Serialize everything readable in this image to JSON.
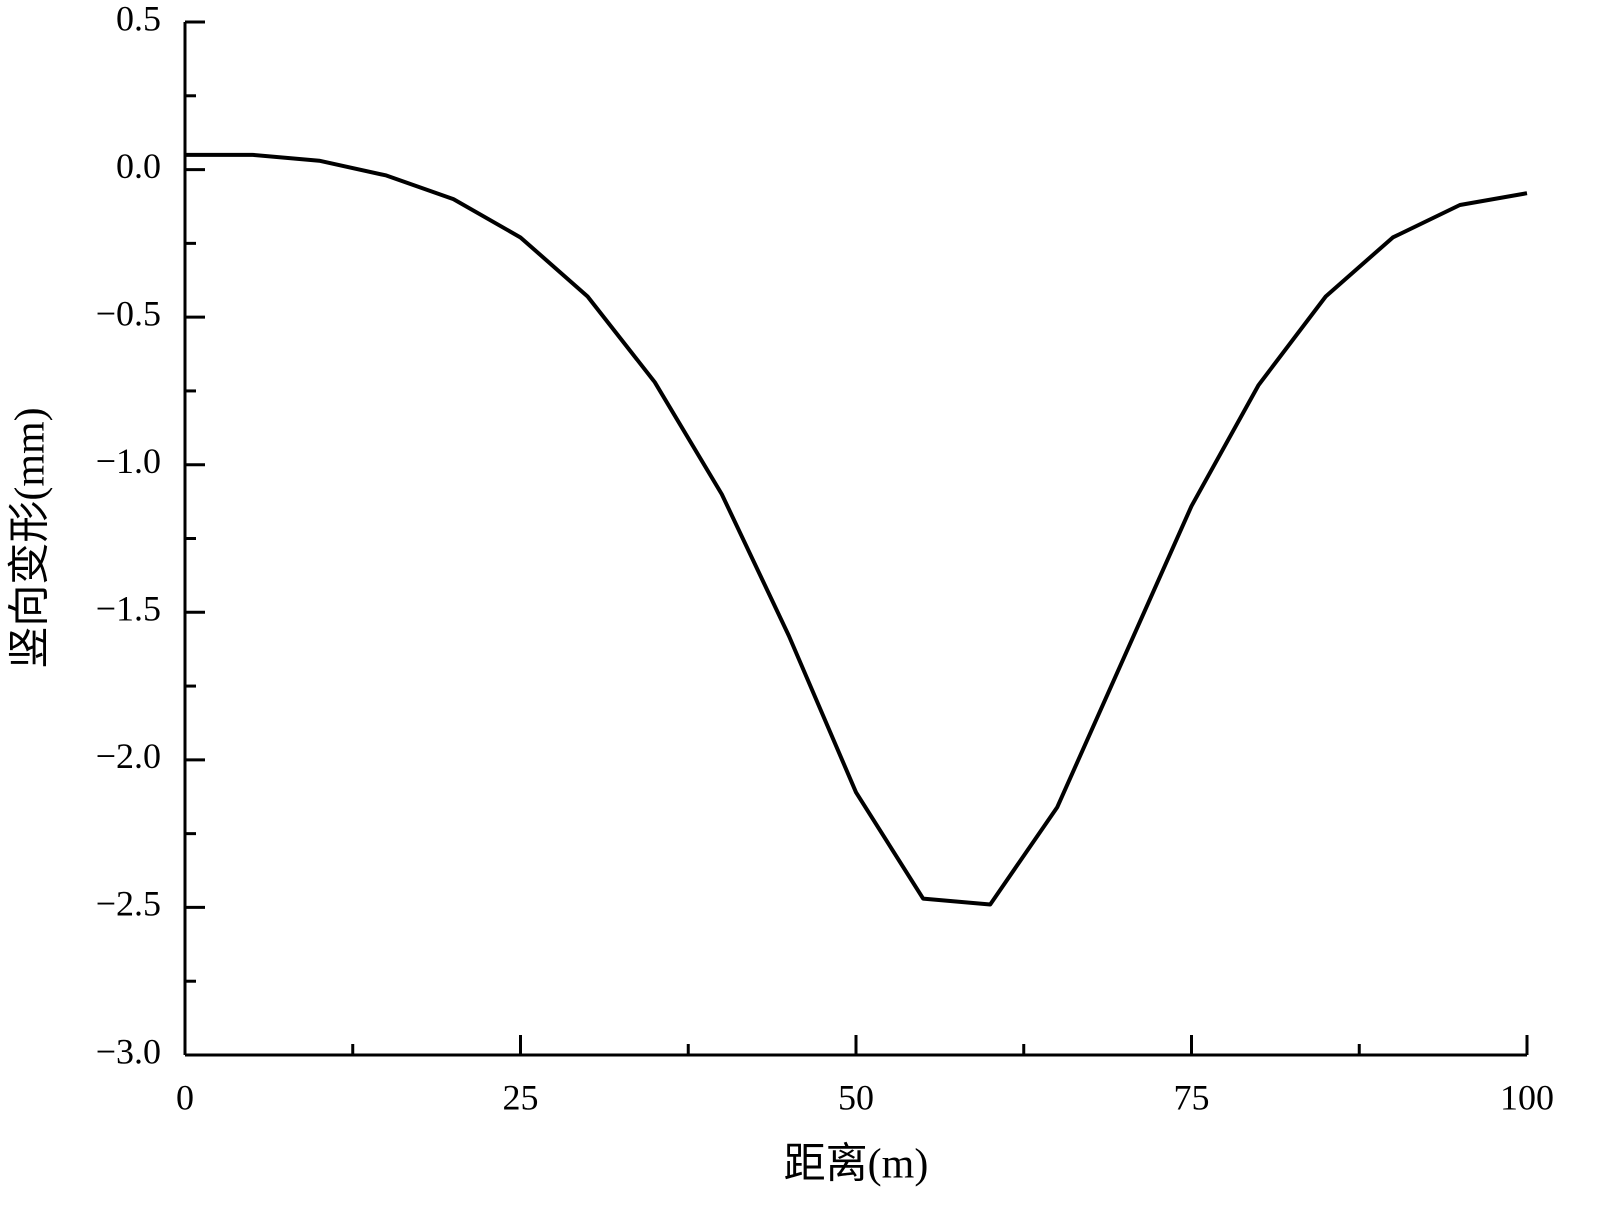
{
  "chart_data": {
    "type": "line",
    "x_label": "距离(m)",
    "y_label": "竖向变形(mm)",
    "x": [
      0,
      5,
      10,
      15,
      20,
      25,
      30,
      35,
      40,
      45,
      50,
      55,
      60,
      65,
      70,
      75,
      80,
      85,
      90,
      95,
      100
    ],
    "series": [
      {
        "color": "#000000",
        "values": [
          0.05,
          0.05,
          0.03,
          -0.02,
          -0.1,
          -0.23,
          -0.43,
          -0.72,
          -1.1,
          -1.58,
          -2.11,
          -2.47,
          -2.49,
          -2.16,
          -1.65,
          -1.14,
          -0.73,
          -0.43,
          -0.23,
          -0.12,
          -0.08
        ]
      }
    ],
    "xlim": [
      0,
      100
    ],
    "xticks": [
      0,
      25,
      50,
      75,
      100
    ],
    "xminorticks": [
      12.5,
      37.5,
      62.5,
      87.5
    ],
    "ylim": [
      -3.0,
      0.5
    ],
    "yticks": [
      {
        "value": -3.0,
        "label": "−3.0"
      },
      {
        "value": -2.5,
        "label": "−2.5"
      },
      {
        "value": -2.0,
        "label": "−2.0"
      },
      {
        "value": -1.5,
        "label": "−1.5"
      },
      {
        "value": -1.0,
        "label": "−1.0"
      },
      {
        "value": -0.5,
        "label": "−0.5"
      },
      {
        "value": 0.0,
        "label": "0.0"
      },
      0.5
    ],
    "yminorticks": [
      -2.75,
      -2.25,
      -1.75,
      -1.25,
      -0.75,
      -0.25,
      0.25
    ],
    "grid": false
  }
}
